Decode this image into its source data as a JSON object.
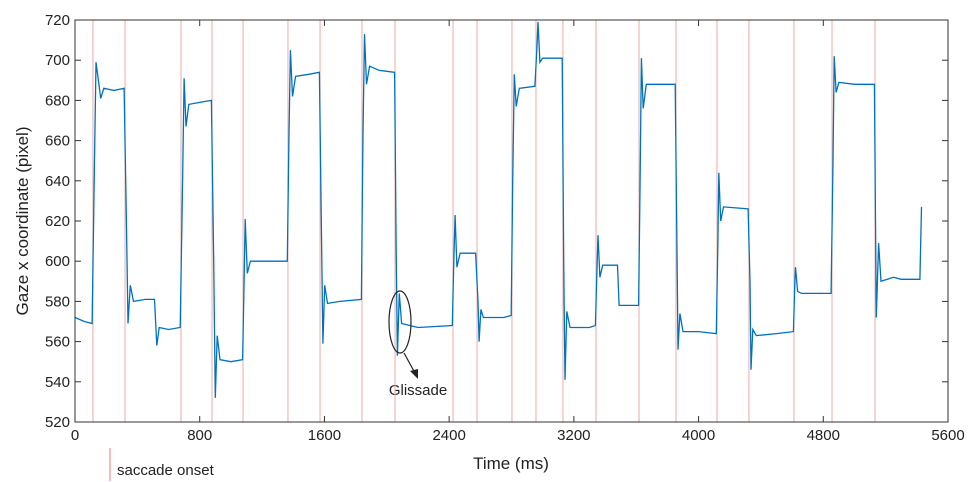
{
  "chart_data": {
    "type": "line",
    "xlabel": "Time (ms)",
    "ylabel": "Gaze x coordinate (pixel)",
    "xlim": [
      0,
      5600
    ],
    "xticks": [
      0,
      800,
      1600,
      2400,
      3200,
      4000,
      4800,
      5600
    ],
    "ylim": [
      520,
      720
    ],
    "yticks": [
      520,
      540,
      560,
      580,
      600,
      620,
      640,
      660,
      680,
      700,
      720
    ],
    "color": "#0072bd",
    "x": [
      0,
      60,
      110,
      125,
      135,
      150,
      165,
      185,
      250,
      315,
      330,
      340,
      355,
      375,
      450,
      510,
      525,
      540,
      600,
      675,
      690,
      700,
      712,
      730,
      800,
      875,
      890,
      900,
      912,
      930,
      1000,
      1075,
      1085,
      1092,
      1105,
      1125,
      1250,
      1362,
      1372,
      1382,
      1395,
      1415,
      1500,
      1568,
      1580,
      1590,
      1602,
      1620,
      1700,
      1837,
      1847,
      1857,
      1870,
      1890,
      1950,
      2050,
      2060,
      2068,
      2080,
      2095,
      2200,
      2420,
      2430,
      2438,
      2450,
      2470,
      2570,
      2585,
      2592,
      2604,
      2620,
      2750,
      2798,
      2808,
      2818,
      2830,
      2850,
      2950,
      2962,
      2970,
      2982,
      3000,
      3125,
      3135,
      3143,
      3155,
      3175,
      3300,
      3338,
      3350,
      3355,
      3367,
      3385,
      3480,
      3490,
      3530,
      3615,
      3625,
      3633,
      3645,
      3665,
      3850,
      3862,
      3868,
      3880,
      3900,
      4000,
      4114,
      4124,
      4130,
      4142,
      4160,
      4318,
      4330,
      4336,
      4348,
      4370,
      4500,
      4608,
      4618,
      4622,
      4635,
      4660,
      4850,
      4862,
      4870,
      4882,
      4900,
      5000,
      5128,
      5135,
      5140,
      5155,
      5170,
      5250,
      5300,
      5420,
      5430
    ],
    "values": [
      572,
      570,
      569,
      650,
      699,
      690,
      681,
      686,
      685,
      686,
      620,
      569,
      588,
      580,
      581,
      581,
      558,
      567,
      566,
      567,
      640,
      691,
      667,
      678,
      679,
      680,
      600,
      532,
      563,
      551,
      550,
      551,
      590,
      621,
      594,
      600,
      600,
      600,
      660,
      705,
      682,
      692,
      693,
      694,
      620,
      559,
      588,
      579,
      580,
      581,
      660,
      713,
      688,
      697,
      695,
      694,
      610,
      553,
      584,
      569,
      567,
      568,
      600,
      623,
      597,
      604,
      604,
      580,
      560,
      576,
      572,
      572,
      573,
      640,
      693,
      677,
      686,
      687,
      705,
      719,
      699,
      701,
      701,
      600,
      541,
      575,
      567,
      567,
      568,
      600,
      613,
      592,
      598,
      598,
      578,
      578,
      578,
      640,
      701,
      676,
      688,
      688,
      600,
      556,
      574,
      565,
      565,
      564,
      610,
      644,
      620,
      627,
      626,
      590,
      546,
      566,
      563,
      564,
      565,
      590,
      597,
      585,
      584,
      584,
      650,
      702,
      684,
      689,
      688,
      688,
      620,
      572,
      609,
      590,
      592,
      591,
      591,
      627
    ],
    "saccade_onsets": [
      115,
      321,
      680,
      879,
      1078,
      1366,
      1572,
      1841,
      2053,
      2425,
      2579,
      2803,
      2957,
      3130,
      3342,
      3618,
      3855,
      4118,
      4323,
      4612,
      4856,
      5132
    ],
    "onset_color": "#f2a9a2",
    "legend": "saccade onset",
    "annotation": "Glissade"
  }
}
